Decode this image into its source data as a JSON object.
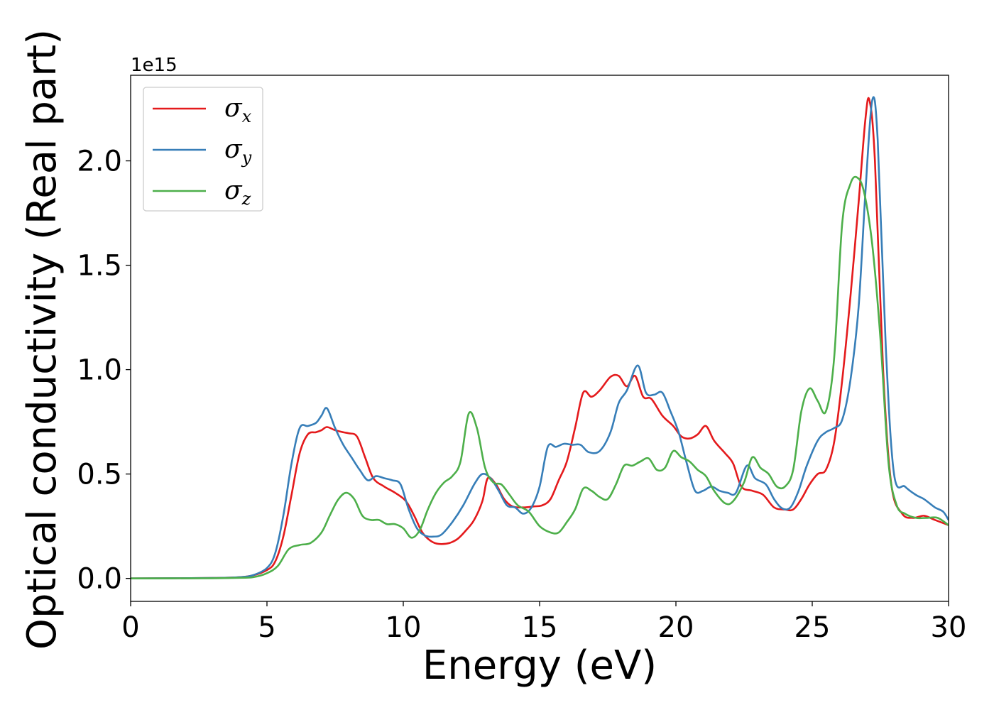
{
  "chart_data": {
    "type": "line",
    "xlabel": "Energy (eV)",
    "ylabel": "Optical conductivity (Real part)",
    "y_offset_label": "1e15",
    "xlim": [
      0,
      30
    ],
    "ylim": [
      -0.11,
      2.41
    ],
    "x_ticks": [
      0,
      5,
      10,
      15,
      20,
      25,
      30
    ],
    "x_tick_labels": [
      "0",
      "5",
      "10",
      "15",
      "20",
      "25",
      "30"
    ],
    "y_ticks": [
      0.0,
      0.5,
      1.0,
      1.5,
      2.0
    ],
    "y_tick_labels": [
      "0.0",
      "0.5",
      "1.0",
      "1.5",
      "2.0"
    ],
    "grid": false,
    "legend_position": "top-left",
    "series": [
      {
        "name": "σx",
        "symbol": "σ",
        "subscript": "x",
        "color": "#e41a1c",
        "points": [
          [
            0,
            0
          ],
          [
            3,
            0.002
          ],
          [
            4,
            0.006
          ],
          [
            4.5,
            0.015
          ],
          [
            5,
            0.04
          ],
          [
            5.3,
            0.08
          ],
          [
            5.6,
            0.2
          ],
          [
            5.9,
            0.4
          ],
          [
            6.2,
            0.6
          ],
          [
            6.5,
            0.69
          ],
          [
            6.8,
            0.7
          ],
          [
            7.0,
            0.71
          ],
          [
            7.2,
            0.725
          ],
          [
            7.5,
            0.71
          ],
          [
            7.8,
            0.7
          ],
          [
            8.0,
            0.695
          ],
          [
            8.3,
            0.68
          ],
          [
            8.6,
            0.58
          ],
          [
            8.9,
            0.48
          ],
          [
            9.3,
            0.44
          ],
          [
            9.7,
            0.41
          ],
          [
            10.1,
            0.37
          ],
          [
            10.4,
            0.3
          ],
          [
            10.7,
            0.22
          ],
          [
            11.0,
            0.18
          ],
          [
            11.3,
            0.165
          ],
          [
            11.7,
            0.17
          ],
          [
            12.0,
            0.19
          ],
          [
            12.3,
            0.23
          ],
          [
            12.6,
            0.28
          ],
          [
            12.9,
            0.37
          ],
          [
            13.1,
            0.48
          ],
          [
            13.4,
            0.45
          ],
          [
            13.7,
            0.38
          ],
          [
            14.0,
            0.345
          ],
          [
            14.4,
            0.34
          ],
          [
            14.8,
            0.345
          ],
          [
            15.1,
            0.35
          ],
          [
            15.4,
            0.38
          ],
          [
            15.7,
            0.47
          ],
          [
            16.0,
            0.56
          ],
          [
            16.3,
            0.72
          ],
          [
            16.6,
            0.89
          ],
          [
            16.9,
            0.87
          ],
          [
            17.2,
            0.9
          ],
          [
            17.6,
            0.965
          ],
          [
            17.9,
            0.97
          ],
          [
            18.2,
            0.92
          ],
          [
            18.5,
            0.97
          ],
          [
            18.8,
            0.87
          ],
          [
            19.1,
            0.86
          ],
          [
            19.5,
            0.78
          ],
          [
            19.9,
            0.73
          ],
          [
            20.2,
            0.68
          ],
          [
            20.5,
            0.67
          ],
          [
            20.8,
            0.69
          ],
          [
            21.1,
            0.73
          ],
          [
            21.4,
            0.66
          ],
          [
            21.8,
            0.6
          ],
          [
            22.1,
            0.55
          ],
          [
            22.4,
            0.44
          ],
          [
            22.8,
            0.42
          ],
          [
            23.2,
            0.4
          ],
          [
            23.6,
            0.34
          ],
          [
            24.0,
            0.33
          ],
          [
            24.3,
            0.33
          ],
          [
            24.6,
            0.38
          ],
          [
            24.9,
            0.45
          ],
          [
            25.2,
            0.5
          ],
          [
            25.5,
            0.52
          ],
          [
            25.8,
            0.65
          ],
          [
            26.1,
            0.95
          ],
          [
            26.4,
            1.35
          ],
          [
            26.7,
            1.8
          ],
          [
            26.95,
            2.2
          ],
          [
            27.1,
            2.29
          ],
          [
            27.3,
            2.0
          ],
          [
            27.6,
            1.0
          ],
          [
            27.9,
            0.45
          ],
          [
            28.3,
            0.31
          ],
          [
            28.7,
            0.29
          ],
          [
            29.1,
            0.3
          ],
          [
            29.5,
            0.28
          ],
          [
            30,
            0.255
          ]
        ]
      },
      {
        "name": "σy",
        "symbol": "σ",
        "subscript": "y",
        "color": "#377eb8",
        "points": [
          [
            0,
            0
          ],
          [
            3,
            0.002
          ],
          [
            4,
            0.006
          ],
          [
            4.5,
            0.016
          ],
          [
            5,
            0.05
          ],
          [
            5.3,
            0.12
          ],
          [
            5.6,
            0.3
          ],
          [
            5.9,
            0.55
          ],
          [
            6.2,
            0.72
          ],
          [
            6.5,
            0.73
          ],
          [
            6.8,
            0.745
          ],
          [
            7.0,
            0.78
          ],
          [
            7.2,
            0.815
          ],
          [
            7.5,
            0.72
          ],
          [
            7.8,
            0.64
          ],
          [
            8.1,
            0.58
          ],
          [
            8.4,
            0.52
          ],
          [
            8.7,
            0.47
          ],
          [
            9.0,
            0.49
          ],
          [
            9.3,
            0.48
          ],
          [
            9.6,
            0.47
          ],
          [
            9.9,
            0.45
          ],
          [
            10.2,
            0.33
          ],
          [
            10.5,
            0.24
          ],
          [
            10.8,
            0.205
          ],
          [
            11.1,
            0.2
          ],
          [
            11.4,
            0.21
          ],
          [
            11.8,
            0.27
          ],
          [
            12.2,
            0.35
          ],
          [
            12.6,
            0.45
          ],
          [
            12.9,
            0.5
          ],
          [
            13.2,
            0.48
          ],
          [
            13.5,
            0.42
          ],
          [
            13.8,
            0.35
          ],
          [
            14.1,
            0.34
          ],
          [
            14.4,
            0.31
          ],
          [
            14.7,
            0.34
          ],
          [
            15.0,
            0.44
          ],
          [
            15.3,
            0.63
          ],
          [
            15.6,
            0.63
          ],
          [
            15.9,
            0.645
          ],
          [
            16.2,
            0.64
          ],
          [
            16.5,
            0.64
          ],
          [
            16.8,
            0.605
          ],
          [
            17.2,
            0.61
          ],
          [
            17.6,
            0.7
          ],
          [
            17.9,
            0.84
          ],
          [
            18.2,
            0.9
          ],
          [
            18.6,
            1.02
          ],
          [
            18.9,
            0.89
          ],
          [
            19.2,
            0.88
          ],
          [
            19.5,
            0.89
          ],
          [
            19.8,
            0.8
          ],
          [
            20.1,
            0.7
          ],
          [
            20.4,
            0.55
          ],
          [
            20.7,
            0.42
          ],
          [
            21.0,
            0.42
          ],
          [
            21.3,
            0.44
          ],
          [
            21.6,
            0.42
          ],
          [
            21.9,
            0.41
          ],
          [
            22.2,
            0.41
          ],
          [
            22.6,
            0.54
          ],
          [
            22.9,
            0.48
          ],
          [
            23.3,
            0.45
          ],
          [
            23.6,
            0.38
          ],
          [
            23.9,
            0.335
          ],
          [
            24.2,
            0.34
          ],
          [
            24.5,
            0.42
          ],
          [
            24.8,
            0.54
          ],
          [
            25.2,
            0.66
          ],
          [
            25.5,
            0.7
          ],
          [
            25.8,
            0.72
          ],
          [
            26.1,
            0.76
          ],
          [
            26.4,
            0.95
          ],
          [
            26.7,
            1.3
          ],
          [
            26.95,
            1.85
          ],
          [
            27.2,
            2.29
          ],
          [
            27.4,
            2.1
          ],
          [
            27.7,
            1.1
          ],
          [
            28.0,
            0.5
          ],
          [
            28.4,
            0.44
          ],
          [
            28.8,
            0.4
          ],
          [
            29.1,
            0.38
          ],
          [
            29.5,
            0.34
          ],
          [
            29.8,
            0.32
          ],
          [
            30,
            0.28
          ]
        ]
      },
      {
        "name": "σz",
        "symbol": "σ",
        "subscript": "z",
        "color": "#4daf4a",
        "points": [
          [
            0,
            0
          ],
          [
            3,
            0.001
          ],
          [
            4,
            0.003
          ],
          [
            4.5,
            0.006
          ],
          [
            5,
            0.025
          ],
          [
            5.4,
            0.06
          ],
          [
            5.8,
            0.14
          ],
          [
            6.2,
            0.16
          ],
          [
            6.6,
            0.17
          ],
          [
            7.0,
            0.22
          ],
          [
            7.3,
            0.3
          ],
          [
            7.6,
            0.375
          ],
          [
            7.9,
            0.41
          ],
          [
            8.2,
            0.38
          ],
          [
            8.5,
            0.3
          ],
          [
            8.8,
            0.28
          ],
          [
            9.1,
            0.28
          ],
          [
            9.4,
            0.26
          ],
          [
            9.7,
            0.26
          ],
          [
            10.0,
            0.24
          ],
          [
            10.3,
            0.195
          ],
          [
            10.6,
            0.23
          ],
          [
            10.9,
            0.33
          ],
          [
            11.2,
            0.41
          ],
          [
            11.5,
            0.46
          ],
          [
            11.8,
            0.49
          ],
          [
            12.1,
            0.56
          ],
          [
            12.4,
            0.79
          ],
          [
            12.7,
            0.72
          ],
          [
            13.0,
            0.53
          ],
          [
            13.3,
            0.46
          ],
          [
            13.6,
            0.45
          ],
          [
            13.9,
            0.4
          ],
          [
            14.2,
            0.35
          ],
          [
            14.6,
            0.32
          ],
          [
            15.0,
            0.25
          ],
          [
            15.4,
            0.22
          ],
          [
            15.7,
            0.22
          ],
          [
            16.0,
            0.27
          ],
          [
            16.3,
            0.33
          ],
          [
            16.6,
            0.43
          ],
          [
            16.9,
            0.42
          ],
          [
            17.2,
            0.39
          ],
          [
            17.5,
            0.38
          ],
          [
            17.8,
            0.45
          ],
          [
            18.1,
            0.54
          ],
          [
            18.4,
            0.54
          ],
          [
            18.7,
            0.56
          ],
          [
            19.0,
            0.575
          ],
          [
            19.3,
            0.52
          ],
          [
            19.6,
            0.53
          ],
          [
            19.9,
            0.61
          ],
          [
            20.2,
            0.58
          ],
          [
            20.5,
            0.56
          ],
          [
            20.8,
            0.52
          ],
          [
            21.1,
            0.49
          ],
          [
            21.4,
            0.42
          ],
          [
            21.8,
            0.36
          ],
          [
            22.1,
            0.37
          ],
          [
            22.5,
            0.46
          ],
          [
            22.8,
            0.58
          ],
          [
            23.1,
            0.53
          ],
          [
            23.4,
            0.5
          ],
          [
            23.7,
            0.44
          ],
          [
            24.0,
            0.44
          ],
          [
            24.3,
            0.52
          ],
          [
            24.6,
            0.8
          ],
          [
            24.9,
            0.91
          ],
          [
            25.2,
            0.85
          ],
          [
            25.5,
            0.8
          ],
          [
            25.8,
            1.05
          ],
          [
            26.1,
            1.7
          ],
          [
            26.4,
            1.89
          ],
          [
            26.65,
            1.92
          ],
          [
            26.9,
            1.85
          ],
          [
            27.2,
            1.6
          ],
          [
            27.5,
            1.15
          ],
          [
            27.8,
            0.55
          ],
          [
            28.1,
            0.35
          ],
          [
            28.4,
            0.31
          ],
          [
            28.8,
            0.29
          ],
          [
            29.2,
            0.29
          ],
          [
            29.6,
            0.29
          ],
          [
            30,
            0.255
          ]
        ]
      }
    ]
  }
}
